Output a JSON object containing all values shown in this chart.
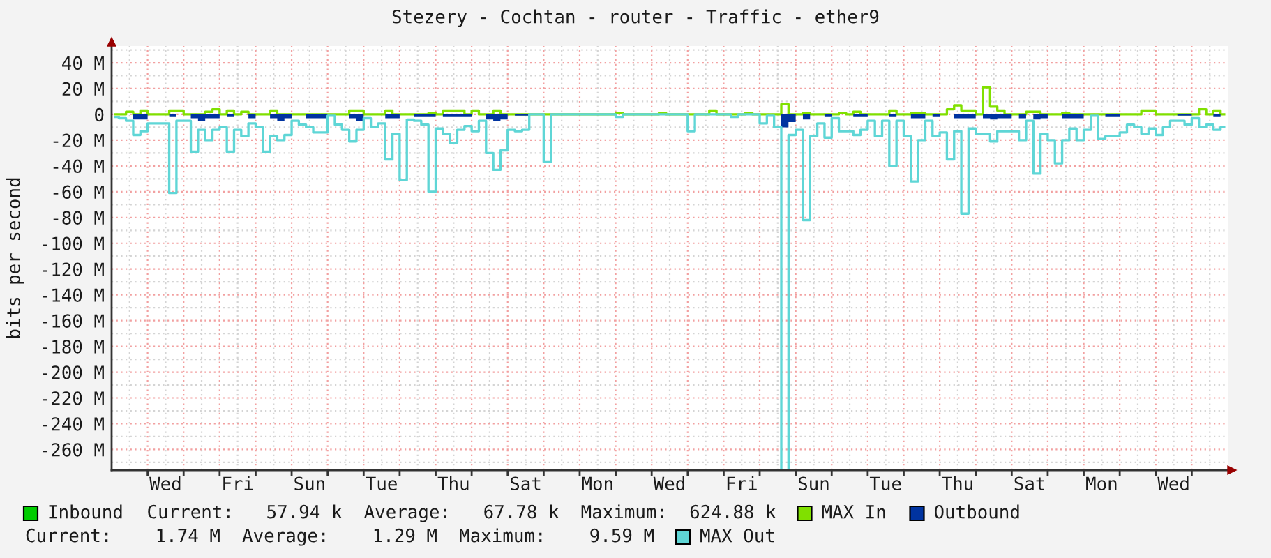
{
  "chart_data": {
    "type": "step",
    "title": "Stezery - Cochtan - router - Traffic - ether9",
    "ylabel": "bits per second",
    "categories": [
      null,
      null,
      null,
      null,
      null,
      null,
      null,
      "Wed",
      null,
      null,
      null,
      null,
      null,
      null,
      null,
      null,
      null,
      "Fri",
      null,
      null,
      null,
      null,
      null,
      null,
      null,
      null,
      null,
      "Sun",
      null,
      null,
      null,
      null,
      null,
      null,
      null,
      null,
      null,
      "Tue",
      null,
      null,
      null,
      null,
      null,
      null,
      null,
      null,
      null,
      "Thu",
      null,
      null,
      null,
      null,
      null,
      null,
      null,
      null,
      null,
      "Sat",
      null,
      null,
      null,
      null,
      null,
      null,
      null,
      null,
      null,
      "Mon",
      null,
      null,
      null,
      null,
      null,
      null,
      null,
      null,
      null,
      "Wed",
      null,
      null,
      null,
      null,
      null,
      null,
      null,
      null,
      null,
      "Fri",
      null,
      null,
      null,
      null,
      null,
      null,
      null,
      null,
      null,
      "Sun",
      null,
      null,
      null,
      null,
      null,
      null,
      null,
      null,
      null,
      "Tue",
      null,
      null,
      null,
      null,
      null,
      null,
      null,
      null,
      null,
      "Thu",
      null,
      null,
      null,
      null,
      null,
      null,
      null,
      null,
      null,
      "Sat",
      null,
      null,
      null,
      null,
      null,
      null,
      null,
      null,
      null,
      "Mon",
      null,
      null,
      null,
      null,
      null,
      null,
      null,
      null,
      null,
      "Wed",
      null,
      null,
      null,
      null,
      null,
      null,
      null
    ],
    "ylim": [
      -276,
      53
    ],
    "yticks": [
      {
        "value": 40,
        "label": "40 M"
      },
      {
        "value": 20,
        "label": "20 M"
      },
      0,
      {
        "value": -20,
        "label": "-20 M"
      },
      {
        "value": -40,
        "label": "-40 M"
      },
      {
        "value": -60,
        "label": "-60 M"
      },
      {
        "value": -80,
        "label": "-80 M"
      },
      {
        "value": -100,
        "label": "-100 M"
      },
      {
        "value": -120,
        "label": "-120 M"
      },
      {
        "value": -140,
        "label": "-140 M"
      },
      {
        "value": -160,
        "label": "-160 M"
      },
      {
        "value": -180,
        "label": "-180 M"
      },
      {
        "value": -200,
        "label": "-200 M"
      },
      {
        "value": -220,
        "label": "-220 M"
      },
      {
        "value": -240,
        "label": "-240 M"
      },
      {
        "value": -260,
        "label": "-260 M"
      }
    ],
    "grid": true,
    "legend": "bottom",
    "annotations": [
      "Current:   57.94 k  Average:   67.78 k  Maximum:  624.88 k",
      "Current:    1.74 M  Average:    1.29 M  Maximum:    9.59 M"
    ],
    "series": [
      {
        "name": "Inbound",
        "type": "area",
        "color": "#00cc00",
        "values": [
          null,
          null,
          null,
          null,
          null,
          null,
          null,
          null,
          null,
          null,
          null,
          null,
          null,
          null,
          null,
          null,
          null,
          null,
          null,
          null,
          null,
          null,
          null,
          null,
          null,
          null,
          null,
          null,
          null,
          null,
          null,
          null,
          null,
          null,
          null,
          null,
          null,
          null,
          null,
          null,
          null,
          null,
          null,
          null,
          null,
          null,
          null,
          null,
          null,
          null,
          null,
          null,
          null,
          null,
          null,
          null,
          null,
          null,
          null,
          null,
          null,
          null,
          null,
          null,
          null,
          null,
          null,
          null,
          null,
          null,
          null,
          null,
          null,
          null,
          null,
          null,
          null,
          null,
          null,
          null,
          null,
          null,
          null,
          null,
          null,
          null,
          null,
          null,
          null,
          null,
          null,
          null,
          null,
          null,
          null,
          null,
          null,
          null,
          null,
          null,
          null,
          null,
          null,
          null,
          null,
          null,
          null,
          null,
          null,
          null,
          null,
          null,
          null,
          null,
          null,
          null,
          null,
          null,
          null,
          null,
          null,
          null,
          null,
          null,
          null,
          null,
          null,
          null,
          null,
          null,
          null,
          null,
          null,
          null,
          null,
          null,
          null,
          null,
          null,
          null,
          null,
          null,
          null,
          null,
          null,
          null,
          null,
          null,
          null,
          null,
          null,
          null,
          null,
          null,
          null
        ]
      },
      {
        "name": "MAX In",
        "color": "#80e000",
        "values": [
          0,
          0,
          2,
          0,
          3,
          0,
          0,
          0,
          3,
          3,
          0,
          0,
          0,
          2,
          4,
          0,
          3,
          0,
          2,
          0,
          0,
          0,
          3,
          0,
          0,
          0,
          0,
          0,
          0,
          0,
          0,
          0,
          0,
          3,
          3,
          0,
          0,
          0,
          3,
          0,
          0,
          0,
          0,
          0,
          1,
          0,
          3,
          3,
          3,
          0,
          3,
          0,
          0,
          3,
          0,
          0,
          0,
          0,
          0,
          0,
          0,
          0,
          0,
          0,
          0,
          0,
          0,
          0,
          0,
          0,
          1,
          0,
          0,
          0,
          0,
          0,
          1,
          0,
          0,
          0,
          0,
          0,
          0,
          3,
          0,
          0,
          0,
          0,
          1,
          0,
          0,
          0,
          0,
          8,
          0,
          0,
          1,
          0,
          0,
          0,
          0,
          1,
          0,
          2,
          0,
          0,
          0,
          0,
          3,
          0,
          0,
          1,
          1,
          0,
          0,
          0,
          4,
          7,
          3,
          3,
          0,
          21,
          6,
          3,
          0,
          0,
          0,
          2,
          2,
          0,
          0,
          0,
          1,
          0,
          0,
          0,
          0,
          0,
          0,
          0,
          0,
          0,
          0,
          3,
          3,
          0,
          0,
          0,
          0,
          0,
          0,
          4,
          0,
          3,
          0
        ]
      },
      {
        "name": "Outbound",
        "type": "area",
        "color": "#0033a0",
        "values": [
          0,
          0,
          0,
          -4,
          -4,
          0,
          0,
          0,
          -2,
          0,
          0,
          -3,
          -5,
          -3,
          -3,
          0,
          -2,
          0,
          0,
          -3,
          0,
          0,
          -3,
          -5,
          -3,
          0,
          0,
          -3,
          -3,
          -3,
          0,
          0,
          0,
          -3,
          -5,
          0,
          0,
          0,
          -3,
          -3,
          0,
          0,
          -2,
          -2,
          -2,
          0,
          -2,
          -2,
          -2,
          -2,
          0,
          0,
          -4,
          -5,
          -4,
          0,
          -1,
          -1,
          0,
          0,
          0,
          0,
          0,
          0,
          0,
          0,
          0,
          0,
          0,
          0,
          0,
          0,
          0,
          0,
          0,
          0,
          0,
          0,
          0,
          0,
          0,
          0,
          0,
          0,
          0,
          0,
          0,
          0,
          0,
          0,
          0,
          0,
          0,
          -10,
          -6,
          0,
          -4,
          0,
          0,
          -2,
          0,
          0,
          0,
          -2,
          -2,
          0,
          0,
          0,
          -2,
          0,
          0,
          -3,
          -3,
          0,
          -2,
          0,
          0,
          -3,
          -3,
          -3,
          0,
          -3,
          -4,
          -3,
          -3,
          0,
          -3,
          0,
          -4,
          -3,
          0,
          0,
          -3,
          -3,
          -3,
          0,
          0,
          0,
          -2,
          -2,
          0,
          0,
          0,
          0,
          0,
          0,
          0,
          0,
          -1,
          -1,
          0,
          0,
          0,
          -2,
          0
        ]
      },
      {
        "name": "MAX Out",
        "color": "#5fd6d6",
        "values": [
          -2,
          -3,
          -5,
          -16,
          -13,
          -7,
          -7,
          -7,
          -61,
          -5,
          -5,
          -29,
          -12,
          -20,
          -12,
          -10,
          -29,
          -12,
          -17,
          -7,
          -10,
          -29,
          -17,
          -20,
          -16,
          -5,
          -8,
          -10,
          -14,
          -14,
          -1,
          -8,
          -12,
          -21,
          -12,
          -3,
          -10,
          -7,
          -35,
          -15,
          -51,
          -4,
          -5,
          -8,
          -60,
          -11,
          -15,
          -22,
          -12,
          -9,
          -13,
          -5,
          -30,
          -43,
          -28,
          -12,
          -13,
          -12,
          0,
          0,
          -37,
          0,
          0,
          0,
          0,
          0,
          0,
          0,
          0,
          0,
          -2,
          0,
          0,
          0,
          0,
          0,
          0,
          0,
          0,
          0,
          -13,
          0,
          0,
          0,
          0,
          0,
          -2,
          0,
          0,
          0,
          -7,
          -1,
          -10,
          -276,
          -16,
          -12,
          -82,
          -17,
          -7,
          -18,
          -3,
          -13,
          -13,
          -16,
          -12,
          -5,
          -17,
          -5,
          -40,
          -5,
          -17,
          -52,
          -20,
          -5,
          -17,
          -14,
          -35,
          -13,
          -77,
          -11,
          -15,
          -15,
          -21,
          -13,
          -13,
          -13,
          -20,
          -5,
          -46,
          -15,
          -20,
          -38,
          -20,
          -11,
          -20,
          -12,
          -1,
          -19,
          -17,
          -17,
          -14,
          -8,
          -10,
          -15,
          -11,
          -16,
          -10,
          -5,
          -5,
          -8,
          -3,
          -10,
          -8,
          -12,
          -10
        ]
      }
    ]
  }
}
